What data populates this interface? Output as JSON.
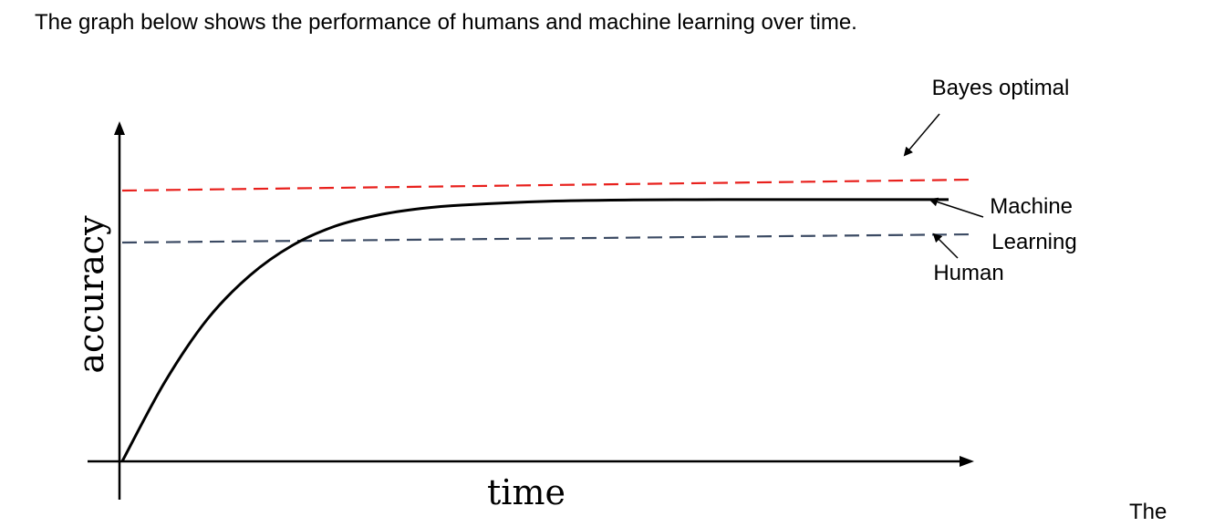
{
  "intro_text": "The graph below shows the performance of humans and machine learning over time.",
  "trailing_text": "The",
  "chart_data": {
    "type": "line",
    "xlabel": "time",
    "ylabel": "accuracy",
    "xlim": [
      0,
      1
    ],
    "ylim": [
      0,
      1
    ],
    "grid": false,
    "annotations": [
      {
        "label": "Bayes optimal",
        "target": "bayes"
      },
      {
        "label": "Machine Learning",
        "target": "ml"
      },
      {
        "label": "Human",
        "target": "human"
      }
    ],
    "series": [
      {
        "key": "bayes",
        "style": "dashed",
        "color": "#e8201c",
        "x": [
          0,
          1
        ],
        "y": [
          0.99,
          1.03
        ]
      },
      {
        "key": "human",
        "style": "dashed",
        "color": "#3b4a63",
        "x": [
          0,
          1
        ],
        "y": [
          0.8,
          0.83
        ]
      },
      {
        "key": "ml",
        "style": "solid",
        "color": "#000000",
        "x": [
          0.0,
          0.05,
          0.1,
          0.15,
          0.2,
          0.25,
          0.3,
          0.35,
          0.4,
          0.5,
          0.6,
          0.7,
          0.8,
          0.9,
          0.97
        ],
        "y": [
          0.0,
          0.29,
          0.52,
          0.68,
          0.79,
          0.86,
          0.9,
          0.924,
          0.937,
          0.951,
          0.956,
          0.957,
          0.957,
          0.957,
          0.957
        ]
      }
    ],
    "colors": {
      "bayes": "#e8201c",
      "human": "#3b4a63",
      "ml": "#000000",
      "axis": "#000000"
    }
  }
}
